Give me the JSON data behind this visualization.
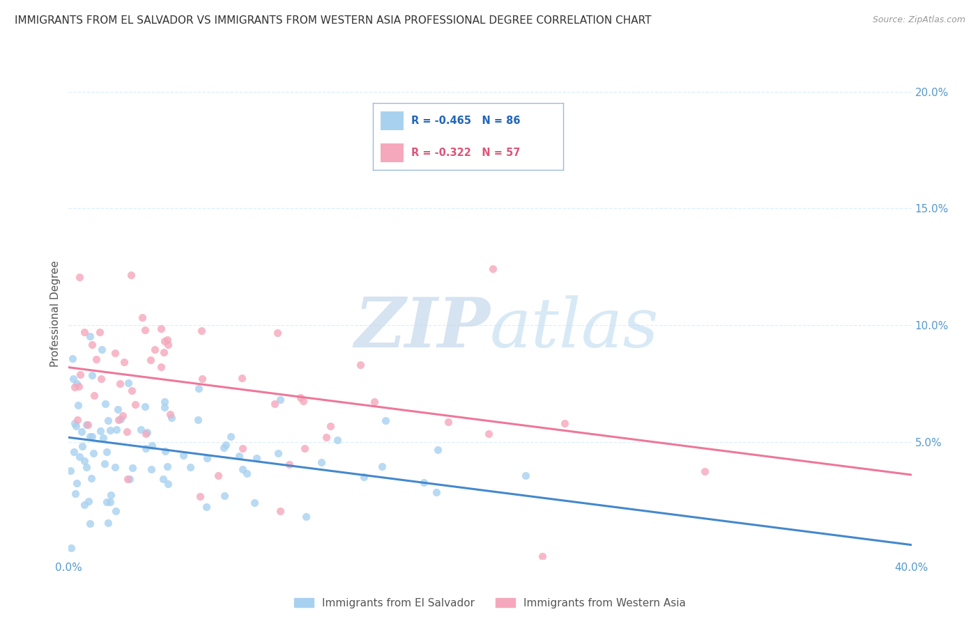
{
  "title": "IMMIGRANTS FROM EL SALVADOR VS IMMIGRANTS FROM WESTERN ASIA PROFESSIONAL DEGREE CORRELATION CHART",
  "source": "Source: ZipAtlas.com",
  "ylabel": "Professional Degree",
  "watermark_zip": "ZIP",
  "watermark_atlas": "atlas",
  "xlim": [
    0.0,
    0.4
  ],
  "ylim": [
    0.0,
    0.21
  ],
  "series1_label": "Immigrants from El Salvador",
  "series1_color": "#a8d1f0",
  "series1_R": "-0.465",
  "series1_N": "86",
  "series2_label": "Immigrants from Western Asia",
  "series2_color": "#f5a8bc",
  "series2_R": "-0.322",
  "series2_N": "57",
  "legend_color1": "#2266bb",
  "legend_color2": "#dd5577",
  "trend1_color": "#4488cc",
  "trend2_color": "#ee7799",
  "background_color": "#ffffff",
  "grid_color": "#ddeeff",
  "tick_color": "#5599cc",
  "ylabel_color": "#555555",
  "title_color": "#333333",
  "source_color": "#999999",
  "seed1": 42,
  "seed2": 77,
  "n1": 86,
  "n2": 57,
  "slope1": -0.115,
  "intercept1": 0.052,
  "slope2": -0.115,
  "intercept2": 0.082
}
